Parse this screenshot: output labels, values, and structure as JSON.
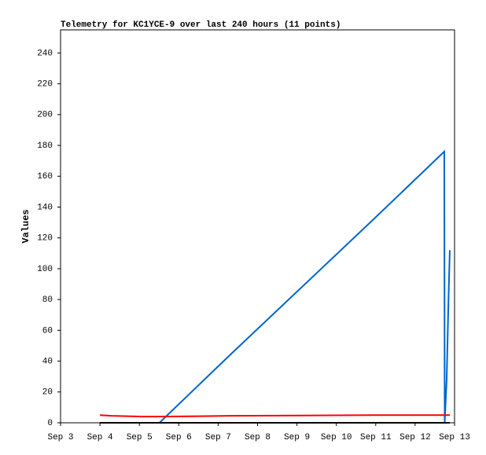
{
  "chart_data": {
    "type": "line",
    "title": "Telemetry for KC1YCE-9 over last 240 hours (11 points)",
    "y_label": "Values",
    "x": [
      4.0,
      4.3,
      5.1,
      5.51,
      7.3,
      10.9,
      12.74,
      12.75,
      12.8,
      12.85,
      12.88
    ],
    "series": [
      {
        "color": "#0066cc",
        "values": [
          null,
          null,
          null,
          0,
          44,
          131,
          176,
          0,
          28,
          84,
          112
        ]
      },
      {
        "color": "#ff0000",
        "values": [
          5,
          4.5,
          4,
          4,
          4.5,
          5,
          5,
          5,
          5,
          5,
          5
        ]
      },
      {
        "color": "#000000",
        "values": [
          0,
          0,
          0,
          0,
          0,
          0,
          0,
          0,
          0,
          0,
          0
        ]
      }
    ],
    "xlim": [
      3,
      13
    ],
    "xticks": [
      {
        "value": 3,
        "label": "Sep 3"
      },
      {
        "value": 4,
        "label": "Sep 4"
      },
      {
        "value": 5,
        "label": "Sep 5"
      },
      {
        "value": 6,
        "label": "Sep 6"
      },
      {
        "value": 7,
        "label": "Sep 7"
      },
      {
        "value": 8,
        "label": "Sep 8"
      },
      {
        "value": 9,
        "label": "Sep 9"
      },
      {
        "value": 10,
        "label": "Sep 10"
      },
      {
        "value": 11,
        "label": "Sep 11"
      },
      {
        "value": 12,
        "label": "Sep 12"
      },
      {
        "value": 13,
        "label": "Sep 13"
      }
    ],
    "ylim": [
      0,
      255
    ],
    "yticks": [
      0,
      20,
      40,
      60,
      80,
      100,
      120,
      140,
      160,
      180,
      200,
      220,
      240
    ]
  }
}
